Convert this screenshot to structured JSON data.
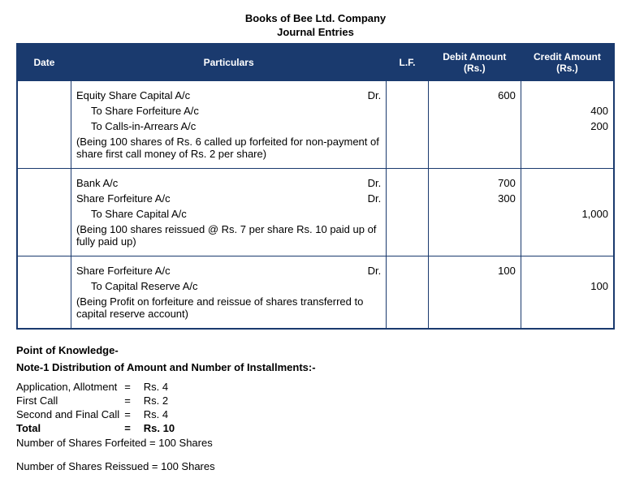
{
  "title_line1": "Books of Bee Ltd. Company",
  "title_line2": "Journal Entries",
  "headers": {
    "date": "Date",
    "particulars": "Particulars",
    "lf": "L.F.",
    "debit": "Debit Amount (Rs.)",
    "credit": "Credit Amount (Rs.)"
  },
  "entries": [
    {
      "lines": [
        {
          "text": "Equity Share Capital A/c",
          "dr": "Dr.",
          "debit": "600",
          "credit": ""
        },
        {
          "text": "To Share Forfeiture A/c",
          "indent": true,
          "debit": "",
          "credit": "400"
        },
        {
          "text": "To Calls-in-Arrears A/c",
          "indent": true,
          "debit": "",
          "credit": "200"
        },
        {
          "text": "(Being 100 shares of Rs. 6 called up forfeited for non-payment of share first call money of Rs. 2 per share)",
          "narration": true
        }
      ]
    },
    {
      "lines": [
        {
          "text": "Bank A/c",
          "dr": "Dr.",
          "debit": "700",
          "credit": ""
        },
        {
          "text": "Share Forfeiture A/c",
          "dr": "Dr.",
          "debit": "300",
          "credit": ""
        },
        {
          "text": "To Share Capital A/c",
          "indent": true,
          "debit": "",
          "credit": "1,000"
        },
        {
          "text": "(Being 100 shares reissued @ Rs. 7 per share Rs. 10 paid up of fully paid up)",
          "narration": true
        }
      ]
    },
    {
      "lines": [
        {
          "text": "Share Forfeiture A/c",
          "dr": "Dr.",
          "debit": "100",
          "credit": ""
        },
        {
          "text": "To Capital Reserve A/c",
          "indent": true,
          "debit": "",
          "credit": "100"
        },
        {
          "text": "(Being Profit on forfeiture and reissue of shares transferred to capital reserve account)",
          "narration": true
        }
      ]
    }
  ],
  "notes": {
    "heading": "Point of Knowledge-",
    "subheading": "Note-1 Distribution of Amount and Number of Installments:-",
    "rows": [
      {
        "label": "Application, Allotment",
        "eq": "=",
        "val": "Rs. 4"
      },
      {
        "label": "First Call",
        "eq": "=",
        "val": "Rs. 2"
      },
      {
        "label": "Second and Final Call",
        "eq": "=",
        "val": "Rs. 4"
      }
    ],
    "total": {
      "label": "Total",
      "eq": "=",
      "val": "Rs. 10"
    },
    "forfeited": "Number of Shares Forfeited = 100 Shares",
    "reissued": "Number of Shares Reissued = 100 Shares"
  }
}
